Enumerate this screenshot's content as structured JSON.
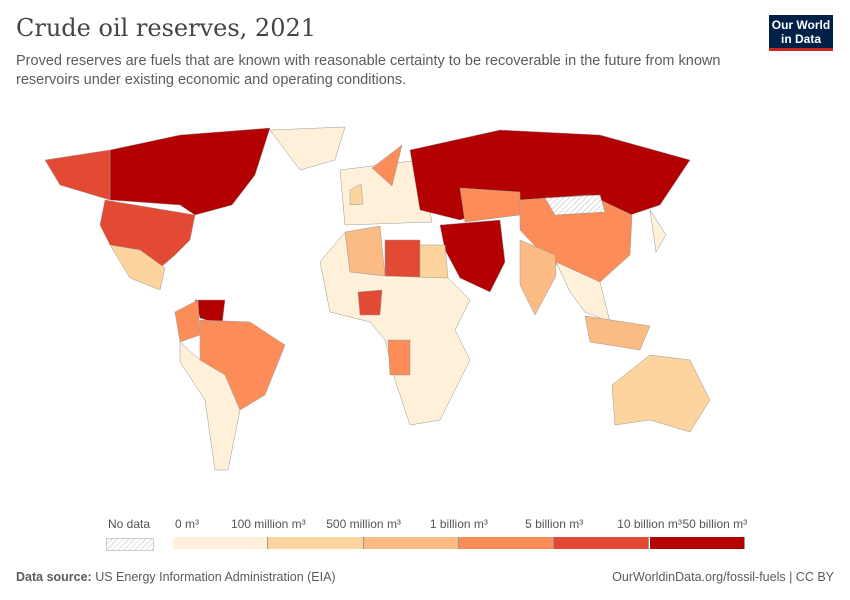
{
  "header": {
    "title": "Crude oil reserves, 2021",
    "subtitle": "Proved reserves are fuels that are known with reasonable certainty to be recoverable in the future from known reservoirs under existing economic and operating conditions.",
    "logo_text": "Our World in Data"
  },
  "legend": {
    "no_data_label": "No data",
    "tick_labels": [
      "0 m³",
      "100 million m³",
      "500 million m³",
      "1 billion m³",
      "5 billion m³",
      "10 billion m³",
      "50 billion m³"
    ],
    "bin_colors": [
      "#fef0d9",
      "#fdd49e",
      "#fdbb84",
      "#fc8d59",
      "#e34a33",
      "#b30000"
    ],
    "no_data_color": "#e0e0e0"
  },
  "map_regions": [
    {
      "id": "greenland",
      "bin": 0
    },
    {
      "id": "canada",
      "bin": 5
    },
    {
      "id": "alaska",
      "bin": 4
    },
    {
      "id": "usa",
      "bin": 4
    },
    {
      "id": "mexico",
      "bin": 1
    },
    {
      "id": "venezuela",
      "bin": 5
    },
    {
      "id": "colombia",
      "bin": 3
    },
    {
      "id": "brazil",
      "bin": 3
    },
    {
      "id": "south-america-rest",
      "bin": 0
    },
    {
      "id": "europe",
      "bin": 0
    },
    {
      "id": "norway",
      "bin": 3
    },
    {
      "id": "uk",
      "bin": 1
    },
    {
      "id": "russia",
      "bin": 5
    },
    {
      "id": "kazakhstan",
      "bin": 3
    },
    {
      "id": "china",
      "bin": 3
    },
    {
      "id": "mongolia",
      "bin": -1
    },
    {
      "id": "middle-east",
      "bin": 5
    },
    {
      "id": "algeria",
      "bin": 2
    },
    {
      "id": "libya",
      "bin": 4
    },
    {
      "id": "egypt",
      "bin": 1
    },
    {
      "id": "africa-rest",
      "bin": 0
    },
    {
      "id": "nigeria",
      "bin": 4
    },
    {
      "id": "angola",
      "bin": 3
    },
    {
      "id": "india",
      "bin": 2
    },
    {
      "id": "southeast-asia",
      "bin": 0
    },
    {
      "id": "indonesia",
      "bin": 2
    },
    {
      "id": "australia",
      "bin": 1
    },
    {
      "id": "japan",
      "bin": 0
    }
  ],
  "footer": {
    "source_label": "Data source:",
    "source_text": "US Energy Information Administration (EIA)",
    "url_text": "OurWorldinData.org/fossil-fuels | CC BY"
  }
}
